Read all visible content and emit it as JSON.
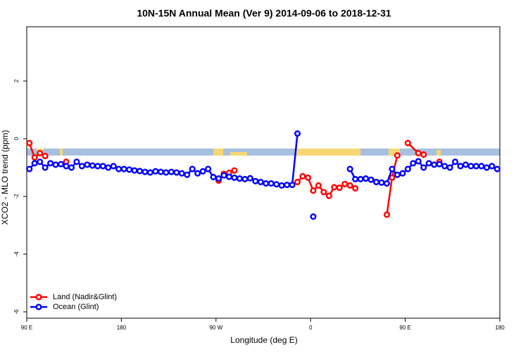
{
  "chart_data": {
    "type": "line",
    "title": "10N-15N Annual Mean (Ver 9)   2014-09-06 to 2018-12-31",
    "x_label": "Longitude (deg E)",
    "y_label": "XCO2 - MLO trend (ppm)",
    "xlim": [
      90,
      540
    ],
    "xticks": [
      {
        "value": 90,
        "label": "90 E"
      },
      {
        "value": 180,
        "label": "180"
      },
      {
        "value": 270,
        "label": "90 W"
      },
      {
        "value": 360,
        "label": "0"
      },
      {
        "value": 450,
        "label": "90 E"
      },
      {
        "value": 540,
        "label": "180"
      }
    ],
    "ylim": [
      -6.22,
      3.88
    ],
    "yticks": [
      -6,
      -4,
      -2,
      0,
      2
    ],
    "legend": "bottom-left",
    "series": [
      {
        "name": "Land (Nadir&Glint)",
        "color": "#ff0000",
        "x": [
          92.5,
          97.5,
          102.5,
          107.5,
          112.5,
          127.5,
          132.5,
          272.5,
          277.5,
          282.5,
          287.5,
          292.5,
          347.5,
          352.5,
          357.5,
          362.5,
          367.5,
          372.5,
          377.5,
          382.5,
          387.5,
          392.5,
          397.5,
          402.5,
          407.5,
          432.5,
          437.5,
          442.5,
          447.5,
          452.5,
          462.5,
          467.5,
          472.5,
          482.5
        ],
        "values": [
          -0.15,
          -0.65,
          -0.5,
          -0.6,
          null,
          -0.8,
          null,
          -1.45,
          -1.22,
          -1.18,
          -1.1,
          null,
          -1.5,
          -1.3,
          -1.35,
          -1.8,
          -1.62,
          -1.85,
          -1.98,
          -1.68,
          -1.7,
          -1.57,
          -1.62,
          -1.72,
          null,
          -2.63,
          -1.35,
          -0.58,
          null,
          -0.15,
          -0.5,
          -0.55,
          null,
          -0.8
        ]
      },
      {
        "name": "Ocean (Glint)",
        "color": "#0000ff",
        "x": [
          92.5,
          97.5,
          102.5,
          107.5,
          112.5,
          117.5,
          122.5,
          127.5,
          132.5,
          137.5,
          142.5,
          147.5,
          152.5,
          157.5,
          162.5,
          167.5,
          172.5,
          177.5,
          182.5,
          187.5,
          192.5,
          197.5,
          202.5,
          207.5,
          212.5,
          217.5,
          222.5,
          227.5,
          232.5,
          237.5,
          242.5,
          247.5,
          252.5,
          257.5,
          262.5,
          267.5,
          272.5,
          277.5,
          282.5,
          287.5,
          292.5,
          297.5,
          302.5,
          307.5,
          312.5,
          317.5,
          322.5,
          327.5,
          332.5,
          337.5,
          342.5,
          347.5,
          352.5,
          362.5,
          367.5,
          397.5,
          402.5,
          407.5,
          412.5,
          417.5,
          422.5,
          427.5,
          432.5,
          437.5,
          442.5,
          447.5,
          452.5,
          457.5,
          462.5,
          467.5,
          472.5,
          477.5,
          482.5,
          487.5,
          492.5,
          497.5,
          502.5,
          507.5,
          512.5,
          517.5,
          522.5,
          527.5,
          532.5,
          537.5
        ],
        "values": [
          -1.05,
          -0.85,
          -0.8,
          -1.0,
          -0.85,
          -0.9,
          -0.88,
          -0.95,
          -1.0,
          -0.8,
          -0.95,
          -0.9,
          -0.93,
          -0.95,
          -0.95,
          -1.0,
          -0.95,
          -1.05,
          -1.05,
          -1.07,
          -1.1,
          -1.12,
          -1.15,
          -1.17,
          -1.13,
          -1.15,
          -1.17,
          -1.15,
          -1.17,
          -1.2,
          -1.25,
          -1.05,
          -1.2,
          -1.13,
          -1.05,
          -1.33,
          -1.38,
          -1.27,
          -1.32,
          -1.35,
          -1.38,
          -1.4,
          -1.37,
          -1.47,
          -1.5,
          -1.55,
          -1.55,
          -1.58,
          -1.62,
          -1.6,
          -1.6,
          0.18,
          null,
          -2.7,
          null,
          -1.05,
          -1.4,
          -1.4,
          -1.38,
          -1.42,
          -1.5,
          -1.52,
          -1.55,
          -1.05,
          -1.25,
          -1.2,
          -1.05,
          -0.85,
          -0.78,
          -1.0,
          -0.85,
          -0.9,
          -0.88,
          -0.95,
          -1.0,
          -0.8,
          -0.95,
          -0.9,
          -0.95,
          -0.95,
          -0.95,
          -1.0,
          -0.95,
          -1.05
        ]
      }
    ]
  }
}
